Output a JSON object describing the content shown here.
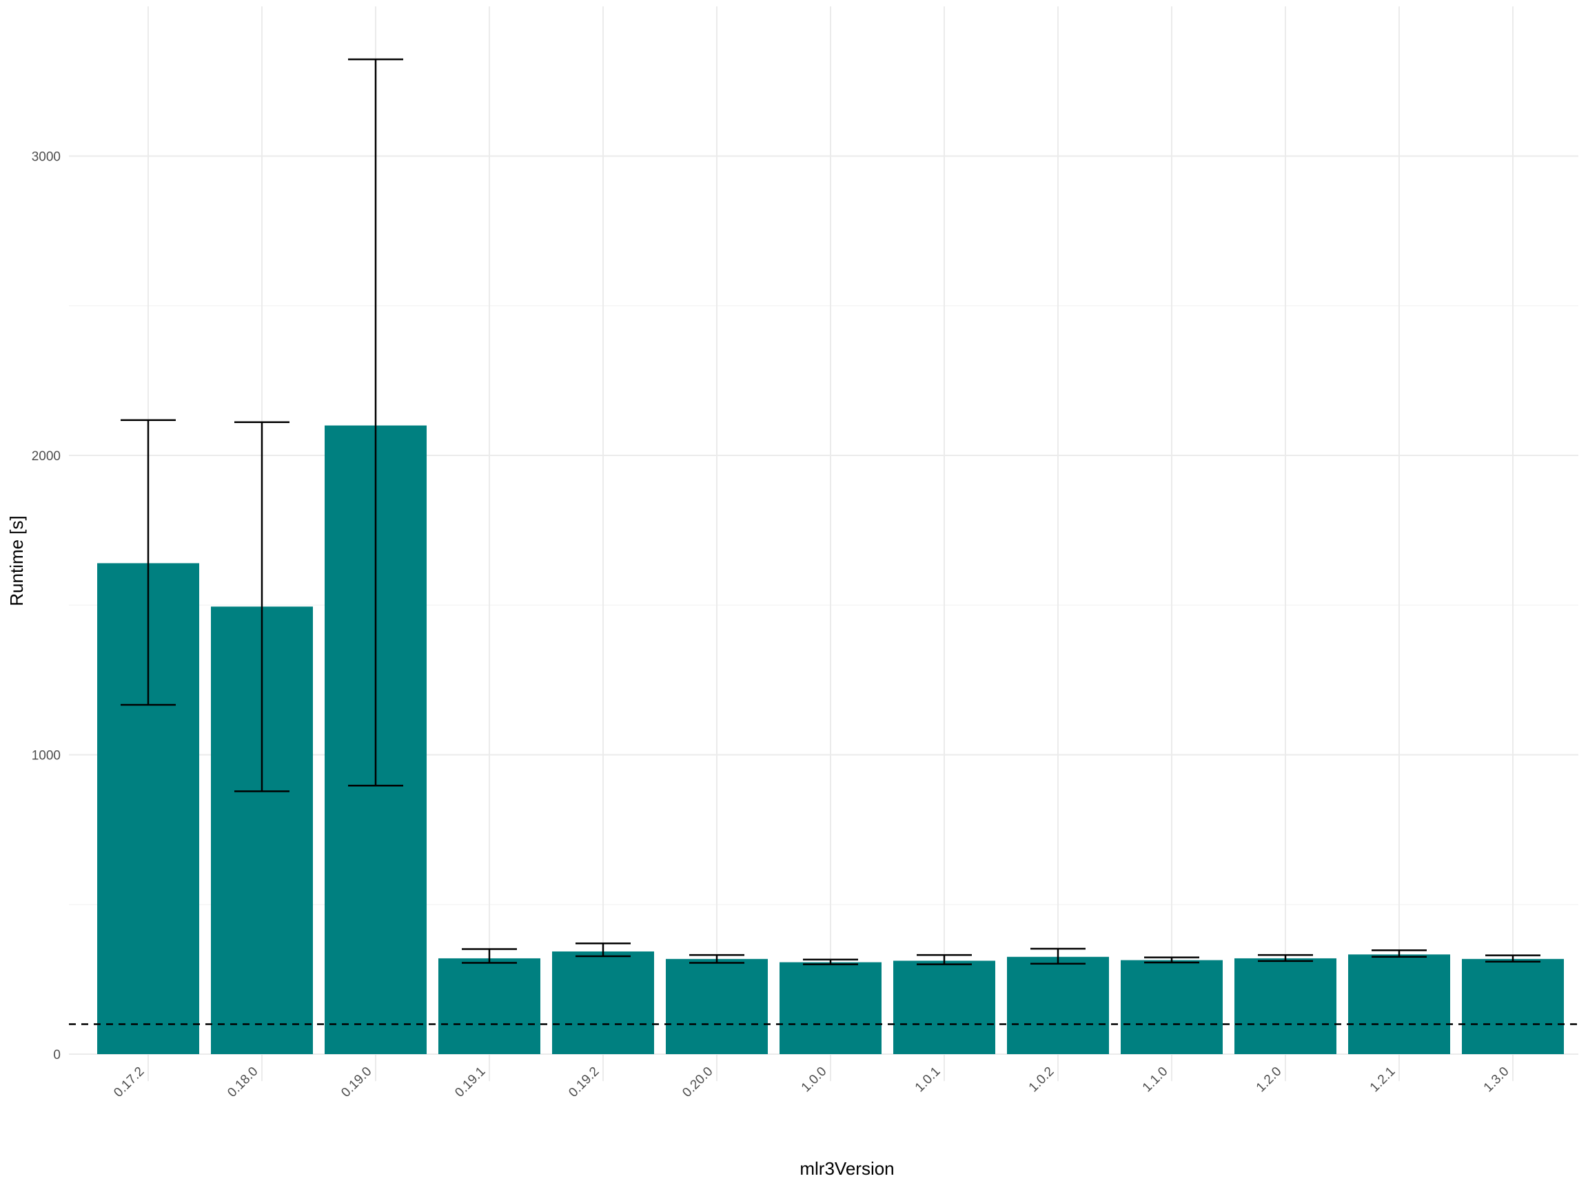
{
  "chart_data": {
    "type": "bar",
    "title": "",
    "xlabel": "mlr3Version",
    "ylabel": "Runtime [s]",
    "categories": [
      "0.17.2",
      "0.18.0",
      "0.19.0",
      "0.19.1",
      "0.19.2",
      "0.20.0",
      "1.0.0",
      "1.0.1",
      "1.0.2",
      "1.1.0",
      "1.2.0",
      "1.2.1",
      "1.3.0"
    ],
    "values": [
      1640,
      1495,
      2100,
      320,
      343,
      318,
      307,
      312,
      325,
      314,
      320,
      333,
      318
    ],
    "error_low": [
      1167,
      878,
      897,
      305,
      327,
      305,
      300,
      300,
      302,
      306,
      311,
      325,
      309
    ],
    "error_high": [
      2118,
      2111,
      3323,
      351,
      370,
      331,
      316,
      331,
      352,
      323,
      331,
      347,
      330
    ],
    "reference_line": 100,
    "ylim": [
      -90,
      3500
    ],
    "yticks": [
      0,
      1000,
      2000,
      3000
    ],
    "ytick_labels": [
      "0",
      "1000",
      "2000",
      "3000"
    ],
    "grid": true,
    "legend": "none",
    "colors": {
      "bar": "#008080",
      "errorbar": "#000000",
      "grid_major": "#ebebeb",
      "grid_minor": "#f5f5f5",
      "reference_line": "#000000"
    }
  }
}
